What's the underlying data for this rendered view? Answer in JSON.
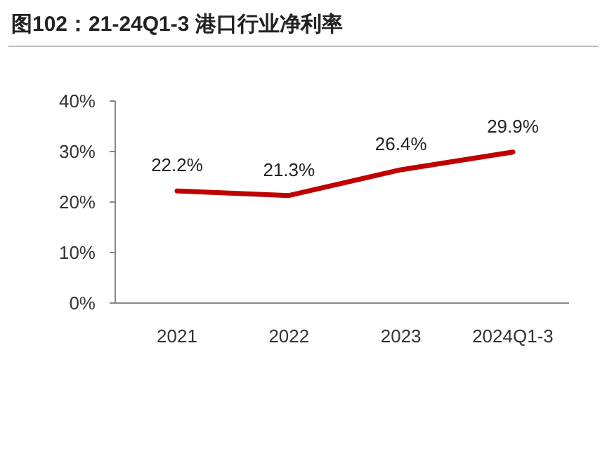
{
  "chart_data": {
    "type": "line",
    "title": "图102：21-24Q1-3 港口行业净利率",
    "categories": [
      "2021",
      "2022",
      "2023",
      "2024Q1-3"
    ],
    "series": [
      {
        "color": "#c00000",
        "values": [
          22.2,
          21.3,
          26.4,
          29.9
        ],
        "value_labels": [
          "22.2%",
          "21.3%",
          "26.4%",
          "29.9%"
        ]
      }
    ],
    "ylim": [
      0,
      40
    ],
    "yticks": [
      {
        "value": 0,
        "label": "0%"
      },
      {
        "value": 10,
        "label": "10%"
      },
      {
        "value": 20,
        "label": "20%"
      },
      {
        "value": 30,
        "label": "30%"
      },
      {
        "value": 40,
        "label": "40%"
      }
    ],
    "grid": false,
    "marker": "none",
    "line_style": "solid"
  }
}
